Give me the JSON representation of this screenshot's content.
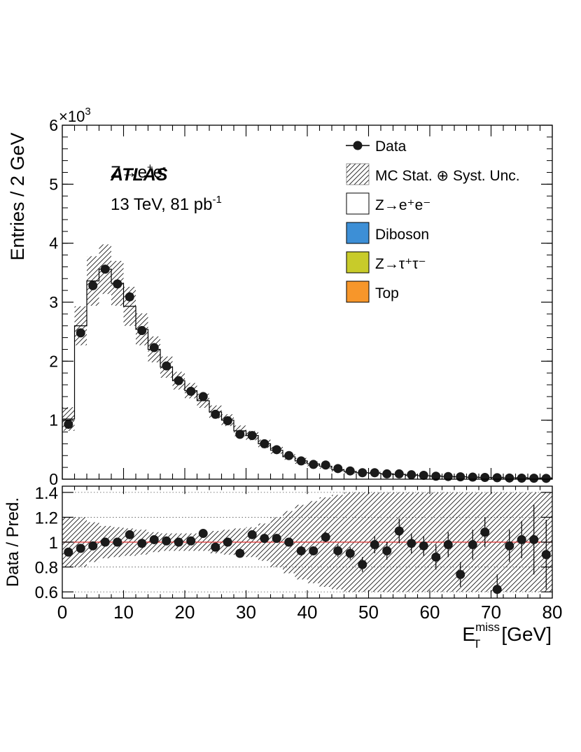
{
  "chart_data": [
    {
      "type": "histogram",
      "panel": "main",
      "ylabel": "Entries / 2 GeV",
      "y_multiplier": "×10",
      "y_multiplier_exp": "3",
      "ylim": [
        0,
        6
      ],
      "yticks": [
        "0",
        "1",
        "2",
        "3",
        "4",
        "5",
        "6"
      ],
      "xlim": [
        0,
        80
      ],
      "bin_width": 2,
      "annotation": {
        "process": "Z→e",
        "process_sup1": "+",
        "process_mid": "e",
        "process_sup2": "-",
        "experiment": "ATLAS",
        "energy": "13 TeV, 81 pb",
        "energy_sup": "-1"
      },
      "legend": [
        {
          "label": "Data",
          "style": "marker"
        },
        {
          "label": "MC Stat. ⊕ Syst. Unc.",
          "style": "hatch"
        },
        {
          "label": "Z→e⁺e⁻",
          "style": "fill",
          "color": "#ffffff"
        },
        {
          "label": "Diboson",
          "style": "fill",
          "color": "#3d8fd6"
        },
        {
          "label": "Z→τ⁺τ⁻",
          "style": "fill",
          "color": "#c8cb2a"
        },
        {
          "label": "Top",
          "style": "fill",
          "color": "#f7962a"
        }
      ],
      "mc": [
        1.02,
        2.6,
        3.36,
        3.56,
        3.32,
        2.93,
        2.54,
        2.2,
        1.9,
        1.67,
        1.5,
        1.33,
        1.14,
        1.0,
        0.82,
        0.74,
        0.6,
        0.49,
        0.38,
        0.31,
        0.26,
        0.22,
        0.16,
        0.13,
        0.11,
        0.1,
        0.09,
        0.08,
        0.07,
        0.06,
        0.05,
        0.045,
        0.04,
        0.035,
        0.03,
        0.026,
        0.023,
        0.02,
        0.018,
        0.016
      ],
      "mc_unc": [
        0.2,
        0.33,
        0.42,
        0.42,
        0.38,
        0.33,
        0.27,
        0.22,
        0.18,
        0.15,
        0.13,
        0.12,
        0.11,
        0.1,
        0.09,
        0.08,
        0.07,
        0.06,
        0.05,
        0.05,
        0.04,
        0.04,
        0.03,
        0.03,
        0.025,
        0.025,
        0.02,
        0.02,
        0.02,
        0.02,
        0.015,
        0.015,
        0.015,
        0.015,
        0.015,
        0.015,
        0.015,
        0.015,
        0.015,
        0.015
      ],
      "data": [
        0.93,
        2.48,
        3.28,
        3.56,
        3.31,
        3.09,
        2.52,
        2.23,
        1.92,
        1.67,
        1.49,
        1.4,
        1.1,
        0.99,
        0.76,
        0.74,
        0.6,
        0.5,
        0.4,
        0.31,
        0.25,
        0.24,
        0.18,
        0.14,
        0.11,
        0.11,
        0.09,
        0.09,
        0.075,
        0.065,
        0.05,
        0.045,
        0.04,
        0.035,
        0.03,
        0.025,
        0.02,
        0.018,
        0.016,
        0.014
      ]
    },
    {
      "type": "scatter",
      "panel": "ratio",
      "ylabel": "Data / Pred.",
      "xlabel": "E",
      "xlabel_sub": "T",
      "xlabel_sup": "miss",
      "xlabel_unit": "[GeV]",
      "ylim": [
        0.55,
        1.45
      ],
      "yticks": [
        "0.6",
        "0.8",
        "1",
        "1.2",
        "1.4"
      ],
      "xlim": [
        0,
        80
      ],
      "xticks": [
        "0",
        "10",
        "20",
        "30",
        "40",
        "50",
        "60",
        "70",
        "80"
      ],
      "reference_line": 1.0,
      "reference_color": "#e03030",
      "unc_band": [
        0.2,
        0.2,
        0.16,
        0.13,
        0.12,
        0.11,
        0.1,
        0.08,
        0.07,
        0.07,
        0.07,
        0.07,
        0.09,
        0.1,
        0.11,
        0.12,
        0.15,
        0.2,
        0.25,
        0.3,
        0.33,
        0.36,
        0.38,
        0.4,
        0.4,
        0.4,
        0.4,
        0.4,
        0.4,
        0.4,
        0.4,
        0.4,
        0.4,
        0.4,
        0.4,
        0.4,
        0.4,
        0.4,
        0.4,
        0.4
      ],
      "ratio": [
        0.92,
        0.95,
        0.97,
        1.0,
        1.0,
        1.06,
        0.99,
        1.02,
        1.01,
        1.0,
        1.01,
        1.07,
        0.96,
        1.0,
        0.91,
        1.06,
        1.03,
        1.03,
        1.0,
        0.93,
        0.93,
        1.04,
        0.93,
        0.91,
        0.82,
        0.98,
        0.93,
        1.09,
        0.99,
        0.97,
        0.88,
        0.98,
        0.74,
        0.98,
        1.08,
        0.62,
        0.97,
        1.02,
        1.02,
        0.9
      ],
      "ratio_err": [
        0.02,
        0.01,
        0.01,
        0.01,
        0.01,
        0.01,
        0.01,
        0.01,
        0.01,
        0.01,
        0.01,
        0.02,
        0.02,
        0.02,
        0.02,
        0.02,
        0.02,
        0.02,
        0.03,
        0.03,
        0.03,
        0.04,
        0.05,
        0.05,
        0.06,
        0.07,
        0.07,
        0.1,
        0.08,
        0.08,
        0.1,
        0.1,
        0.1,
        0.12,
        0.12,
        0.12,
        0.13,
        0.15,
        0.28,
        0.28
      ]
    }
  ]
}
